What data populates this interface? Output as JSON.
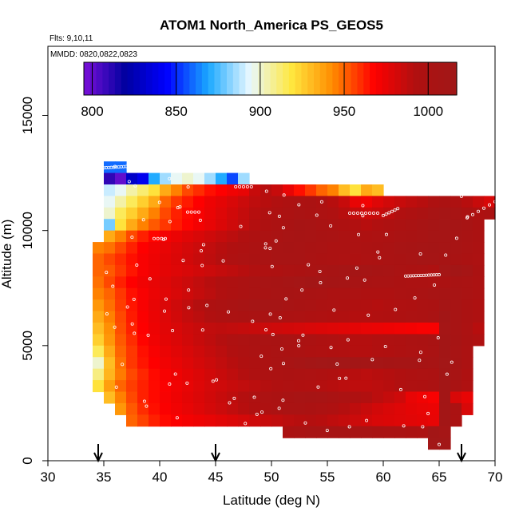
{
  "chart_data": {
    "type": "heatmap",
    "title": "ATOM1 North_America PS_GEOS5",
    "subtitle_flights": "Flts: 9,10,11",
    "subtitle_dates": "MMDD: 0820,0822,0823",
    "xlabel": "Latitude (deg N)",
    "ylabel": "Altitude (m)",
    "xlim": [
      30,
      70
    ],
    "ylim": [
      0,
      18000
    ],
    "xticks": [
      "30",
      "35",
      "40",
      "45",
      "50",
      "55",
      "60",
      "65",
      "70"
    ],
    "yticks": [
      "0",
      "5000",
      "10000",
      "15000"
    ],
    "colorbar": {
      "min": 795,
      "max": 1017,
      "ticks": [
        "800",
        "850",
        "900",
        "950",
        "1000"
      ],
      "stops": [
        "#7a10d8",
        "#0000a0",
        "#0000ff",
        "#1aa8ff",
        "#e8f8ff",
        "#ffe840",
        "#ff8c00",
        "#ff0000",
        "#b01010",
        "#a01818"
      ]
    },
    "arrows_at_latitude": [
      34.5,
      45,
      67
    ],
    "cell_width_deg": 1,
    "cell_height_m": 500,
    "bands": [
      {
        "alt": [
          12500,
          13000
        ],
        "lat": [
          35,
          37
        ],
        "values": [
          860,
          860
        ]
      },
      {
        "alt": [
          12000,
          12500
        ],
        "lat": [
          35,
          48
        ],
        "values": [
          810,
          800,
          830,
          840,
          870,
          885,
          895,
          900,
          895,
          885,
          870,
          855,
          885
        ]
      },
      {
        "alt": [
          11500,
          12000
        ],
        "lat": [
          35,
          60
        ],
        "values": [
          890,
          895,
          905,
          912,
          920,
          935,
          945,
          955,
          960,
          965,
          968,
          972,
          975,
          985,
          990,
          985,
          975,
          965,
          958,
          950,
          945,
          930,
          920,
          935,
          930
        ]
      },
      {
        "alt": [
          11000,
          11500
        ],
        "lat": [
          35,
          70
        ],
        "values": [
          895,
          905,
          915,
          925,
          935,
          950,
          958,
          963,
          968,
          973,
          976,
          980,
          984,
          988,
          990,
          992,
          995,
          998,
          1000,
          995,
          990,
          985,
          975,
          972,
          978,
          982,
          985,
          988,
          990,
          995,
          1000,
          995,
          990,
          985,
          980
        ]
      },
      {
        "alt": [
          10500,
          11000
        ],
        "lat": [
          35,
          70
        ],
        "values": [
          900,
          915,
          925,
          935,
          945,
          955,
          962,
          966,
          970,
          974,
          978,
          982,
          986,
          990,
          993,
          996,
          999,
          1002,
          1000,
          997,
          994,
          990,
          986,
          983,
          985,
          988,
          992,
          996,
          1000,
          1004,
          1008,
          1005,
          1000,
          996,
          1000
        ]
      },
      {
        "alt": [
          10000,
          10500
        ],
        "lat": [
          35,
          69
        ],
        "values": [
          880,
          920,
          935,
          945,
          952,
          958,
          963,
          967,
          971,
          975,
          979,
          983,
          987,
          991,
          995,
          999,
          1003,
          1006,
          1004,
          1001,
          998,
          995,
          992,
          990,
          992,
          995,
          998,
          1001,
          1004,
          1008,
          1010,
          1008,
          1004,
          1000
        ]
      },
      {
        "alt": [
          9500,
          10000
        ],
        "lat": [
          35,
          69
        ],
        "values": [
          935,
          945,
          955,
          962,
          967,
          971,
          974,
          977,
          980,
          983,
          986,
          989,
          992,
          995,
          998,
          1001,
          1004,
          1006,
          1005,
          1003,
          1001,
          999,
          997,
          995,
          997,
          999,
          1001,
          1003,
          1005,
          1007,
          1008,
          1006,
          1003,
          1000
        ]
      },
      {
        "alt": [
          9000,
          9500
        ],
        "lat": [
          34,
          69
        ],
        "values": [
          945,
          948,
          955,
          962,
          968,
          972,
          975,
          978,
          981,
          984,
          987,
          990,
          993,
          996,
          999,
          1002,
          1004,
          1006,
          1005,
          1003,
          1001,
          999,
          998,
          997,
          998,
          1000,
          1002,
          1004,
          1006,
          1008,
          1009,
          1007,
          1004,
          1001,
          998
        ]
      },
      {
        "alt": [
          8500,
          9000
        ],
        "lat": [
          34,
          69
        ],
        "values": [
          950,
          955,
          960,
          965,
          970,
          973,
          976,
          979,
          982,
          985,
          988,
          991,
          994,
          997,
          1000,
          1002,
          1004,
          1005,
          1004,
          1002,
          1000,
          998,
          997,
          996,
          997,
          999,
          1001,
          1003,
          1005,
          1007,
          1008,
          1006,
          1003,
          1000,
          997
        ]
      },
      {
        "alt": [
          8000,
          8500
        ],
        "lat": [
          34,
          69
        ],
        "values": [
          950,
          952,
          958,
          964,
          970,
          973,
          976,
          978,
          980,
          982,
          984,
          986,
          988,
          990,
          992,
          994,
          996,
          998,
          1000,
          1002,
          1004,
          1006,
          1008,
          1009,
          1008,
          1006,
          1004,
          1002,
          1000,
          998,
          996,
          1010,
          1012,
          1008,
          1000
        ]
      },
      {
        "alt": [
          7500,
          8000
        ],
        "lat": [
          34,
          69
        ],
        "values": [
          948,
          955,
          962,
          968,
          972,
          975,
          978,
          981,
          984,
          987,
          990,
          993,
          996,
          999,
          1002,
          1004,
          1006,
          1008,
          1010,
          1012,
          1011,
          1009,
          1007,
          1005,
          1003,
          1002,
          1001,
          1000,
          999,
          998,
          997,
          1000,
          1003,
          1001,
          998
        ]
      },
      {
        "alt": [
          7000,
          7500
        ],
        "lat": [
          34,
          69
        ],
        "values": [
          945,
          950,
          958,
          965,
          970,
          974,
          977,
          980,
          983,
          986,
          989,
          992,
          995,
          998,
          1001,
          1003,
          1005,
          1006,
          1005,
          1003,
          1001,
          999,
          998,
          997,
          996,
          995,
          996,
          998,
          1000,
          1002,
          1004,
          1006,
          1004,
          1001,
          998
        ]
      },
      {
        "alt": [
          6500,
          7000
        ],
        "lat": [
          34,
          69
        ],
        "values": [
          940,
          948,
          957,
          964,
          970,
          975,
          979,
          983,
          987,
          991,
          995,
          999,
          1002,
          1005,
          1007,
          1008,
          1007,
          1005,
          1003,
          1001,
          999,
          997,
          995,
          993,
          992,
          991,
          992,
          994,
          996,
          998,
          1000,
          1008,
          1004,
          1000,
          996
        ]
      },
      {
        "alt": [
          6000,
          6500
        ],
        "lat": [
          34,
          69
        ],
        "values": [
          935,
          945,
          955,
          963,
          969,
          974,
          978,
          982,
          986,
          989,
          992,
          995,
          998,
          1000,
          1001,
          1002,
          1001,
          999,
          997,
          995,
          994,
          993,
          992,
          991,
          991,
          992,
          993,
          995,
          997,
          999,
          1001,
          1012,
          1005,
          1000,
          995
        ]
      },
      {
        "alt": [
          5500,
          6000
        ],
        "lat": [
          34,
          69
        ],
        "values": [
          930,
          942,
          954,
          962,
          968,
          973,
          977,
          980,
          983,
          985,
          987,
          988,
          987,
          986,
          985,
          984,
          983,
          982,
          981,
          980,
          979,
          978,
          977,
          976,
          975,
          974,
          973,
          972,
          971,
          970,
          970,
          1010,
          1004,
          999,
          990
        ]
      },
      {
        "alt": [
          5000,
          5500
        ],
        "lat": [
          34,
          69
        ],
        "values": [
          925,
          940,
          952,
          960,
          967,
          972,
          976,
          979,
          982,
          985,
          988,
          991,
          994,
          997,
          1000,
          1002,
          1003,
          1002,
          1000,
          998,
          996,
          994,
          992,
          991,
          991,
          992,
          994,
          996,
          998,
          1000,
          1003,
          1012,
          1006,
          1000,
          994
        ]
      },
      {
        "alt": [
          4500,
          5000
        ],
        "lat": [
          34,
          68
        ],
        "values": [
          915,
          935,
          950,
          958,
          965,
          970,
          974,
          977,
          980,
          983,
          986,
          989,
          992,
          995,
          998,
          1000,
          1001,
          1000,
          998,
          996,
          994,
          993,
          992,
          991,
          991,
          992,
          993,
          995,
          997,
          999,
          1001,
          1012,
          1005,
          998
        ]
      },
      {
        "alt": [
          4000,
          4500
        ],
        "lat": [
          34,
          68
        ],
        "values": [
          900,
          930,
          948,
          958,
          964,
          968,
          972,
          975,
          978,
          981,
          984,
          987,
          990,
          993,
          996,
          999,
          1002,
          1005,
          1008,
          1011,
          1013,
          1014,
          1013,
          1012,
          1011,
          1010,
          1009,
          1008,
          1007,
          1006,
          1005,
          1013,
          1006,
          998
        ]
      },
      {
        "alt": [
          3500,
          4000
        ],
        "lat": [
          34,
          68
        ],
        "values": [
          910,
          932,
          946,
          955,
          961,
          966,
          970,
          973,
          976,
          979,
          982,
          985,
          988,
          991,
          994,
          997,
          999,
          1000,
          999,
          997,
          995,
          993,
          991,
          990,
          989,
          990,
          991,
          993,
          995,
          997,
          999,
          1012,
          1004,
          995
        ]
      },
      {
        "alt": [
          3000,
          3500
        ],
        "lat": [
          34,
          68
        ],
        "values": [
          920,
          938,
          950,
          957,
          962,
          966,
          969,
          972,
          975,
          978,
          981,
          983,
          985,
          987,
          989,
          991,
          993,
          994,
          993,
          992,
          991,
          990,
          989,
          988,
          988,
          989,
          990,
          992,
          994,
          996,
          998,
          1012,
          1003,
          994
        ]
      },
      {
        "alt": [
          2500,
          3000
        ],
        "lat": [
          35,
          68
        ],
        "values": [
          930,
          945,
          955,
          962,
          966,
          970,
          973,
          976,
          979,
          982,
          985,
          988,
          991,
          994,
          997,
          1000,
          1003,
          1005,
          1006,
          1004,
          1001,
          998,
          995,
          992,
          989,
          986,
          983,
          975,
          972,
          970,
          1012,
          980,
          975
        ]
      },
      {
        "alt": [
          2000,
          2500
        ],
        "lat": [
          36,
          68
        ],
        "values": [
          940,
          952,
          960,
          965,
          969,
          972,
          975,
          978,
          981,
          984,
          987,
          990,
          993,
          996,
          999,
          1001,
          1002,
          1000,
          997,
          994,
          991,
          988,
          985,
          982,
          980,
          978,
          976,
          975,
          974,
          1012,
          1000,
          980
        ]
      },
      {
        "alt": [
          1500,
          2000
        ],
        "lat": [
          37,
          67
        ],
        "values": [
          950,
          956,
          962,
          966,
          969,
          971,
          973,
          975,
          977,
          979,
          981,
          983,
          985,
          987,
          989,
          990,
          991,
          990,
          988,
          986,
          984,
          982,
          980,
          979,
          978,
          977,
          976,
          975,
          1012,
          1000
        ]
      },
      {
        "alt": [
          1000,
          1500
        ],
        "lat": [
          51,
          66
        ],
        "values": [
          1000,
          1002,
          1004,
          1005,
          1006,
          1006,
          1005,
          1004,
          1003,
          1002,
          1001,
          1000,
          999,
          1012,
          1010
        ]
      },
      {
        "alt": [
          500,
          1000
        ],
        "lat": [
          64,
          66
        ],
        "values": [
          1013,
          1013
        ]
      }
    ],
    "flight_track_clusters": [
      {
        "lat": [
          35.0,
          37.0
        ],
        "alt": [
          12720,
          12780
        ],
        "n": 10
      },
      {
        "lat": [
          46.8,
          48.2
        ],
        "alt": [
          11900,
          11900
        ],
        "n": 5
      },
      {
        "lat": [
          57.0,
          59.5
        ],
        "alt": [
          10750,
          10750
        ],
        "n": 8
      },
      {
        "lat": [
          60.0,
          61.3
        ],
        "alt": [
          10650,
          10950
        ],
        "n": 6
      },
      {
        "lat": [
          67.5,
          70.0
        ],
        "alt": [
          10550,
          11250
        ],
        "n": 6
      },
      {
        "lat": [
          62.0,
          65.0
        ],
        "alt": [
          8020,
          8080
        ],
        "n": 14
      },
      {
        "lat": [
          39.5,
          40.5
        ],
        "alt": [
          9650,
          9650
        ],
        "n": 4
      },
      {
        "lat": [
          42.5,
          43.5
        ],
        "alt": [
          10800,
          10800
        ],
        "n": 4
      }
    ]
  }
}
